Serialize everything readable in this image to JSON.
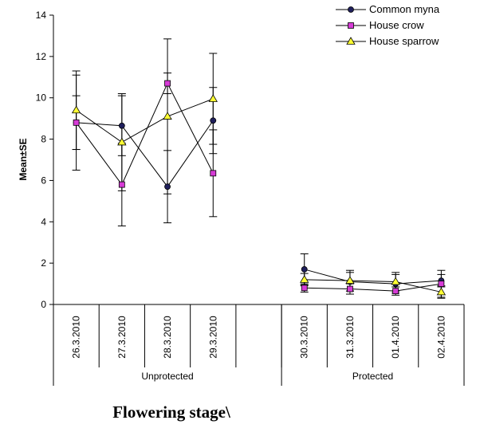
{
  "chart_data": {
    "type": "line",
    "xlabel": "Flowering stage\\",
    "ylabel": "Mean±SE",
    "ylim": [
      0,
      14
    ],
    "yticks": [
      0,
      2,
      4,
      6,
      8,
      10,
      12,
      14
    ],
    "categories": [
      "26.3.2010",
      "27.3.2010",
      "28.3.2010",
      "29.3.2010",
      "",
      "30.3.2010",
      "31.3.2010",
      "01.4.2010",
      "02.4.2010"
    ],
    "groups": [
      {
        "label": "Unprotected",
        "start": 0,
        "end": 4
      },
      {
        "label": "Protected",
        "start": 5,
        "end": 8
      }
    ],
    "legend_position": "top-right",
    "series": [
      {
        "name": "Common myna",
        "color": "#1f1f5c",
        "marker": "circle",
        "values": [
          8.8,
          8.65,
          5.7,
          8.9,
          null,
          1.7,
          1.1,
          1.0,
          1.15
        ],
        "error": [
          2.3,
          1.45,
          1.75,
          1.6,
          null,
          0.75,
          0.45,
          0.45,
          0.3
        ]
      },
      {
        "name": "House crow",
        "color": "#d63bd6",
        "marker": "square",
        "values": [
          8.8,
          5.8,
          10.7,
          6.35,
          null,
          0.8,
          0.75,
          0.65,
          1.0
        ],
        "error": [
          1.3,
          2.0,
          0.5,
          2.1,
          null,
          0.2,
          0.25,
          0.2,
          0.65
        ]
      },
      {
        "name": "House sparrow",
        "color": "#ffff33",
        "marker": "triangle",
        "values": [
          9.4,
          7.85,
          9.1,
          9.95,
          null,
          1.2,
          1.15,
          1.1,
          0.6
        ],
        "error": [
          1.9,
          2.35,
          3.75,
          2.2,
          null,
          0.3,
          0.5,
          0.45,
          0.3
        ]
      }
    ]
  }
}
